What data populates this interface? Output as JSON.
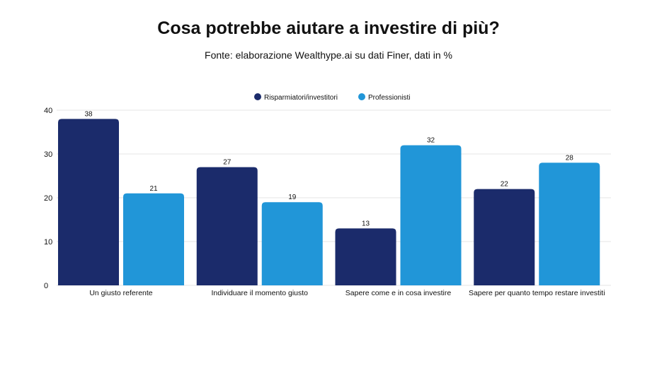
{
  "chart_data": {
    "type": "bar",
    "title": "Cosa potrebbe aiutare a investire di più?",
    "subtitle": "Fonte: elaborazione Wealthype.ai su dati Finer, dati in %",
    "categories": [
      "Un giusto referente",
      "Individuare il momento giusto",
      "Sapere come e in cosa investire",
      "Sapere per quanto tempo restare investiti"
    ],
    "series": [
      {
        "name": "Risparmiatori/investitori",
        "values": [
          38,
          27,
          13,
          22
        ],
        "color": "#1b2b6b"
      },
      {
        "name": "Professionisti",
        "values": [
          21,
          19,
          32,
          28
        ],
        "color": "#2196d8"
      }
    ],
    "xlabel": "",
    "ylabel": "",
    "ylim": [
      0,
      40
    ],
    "yticks": [
      0,
      10,
      20,
      30,
      40
    ],
    "grid": true,
    "legend": "top-center",
    "data_labels": true
  }
}
